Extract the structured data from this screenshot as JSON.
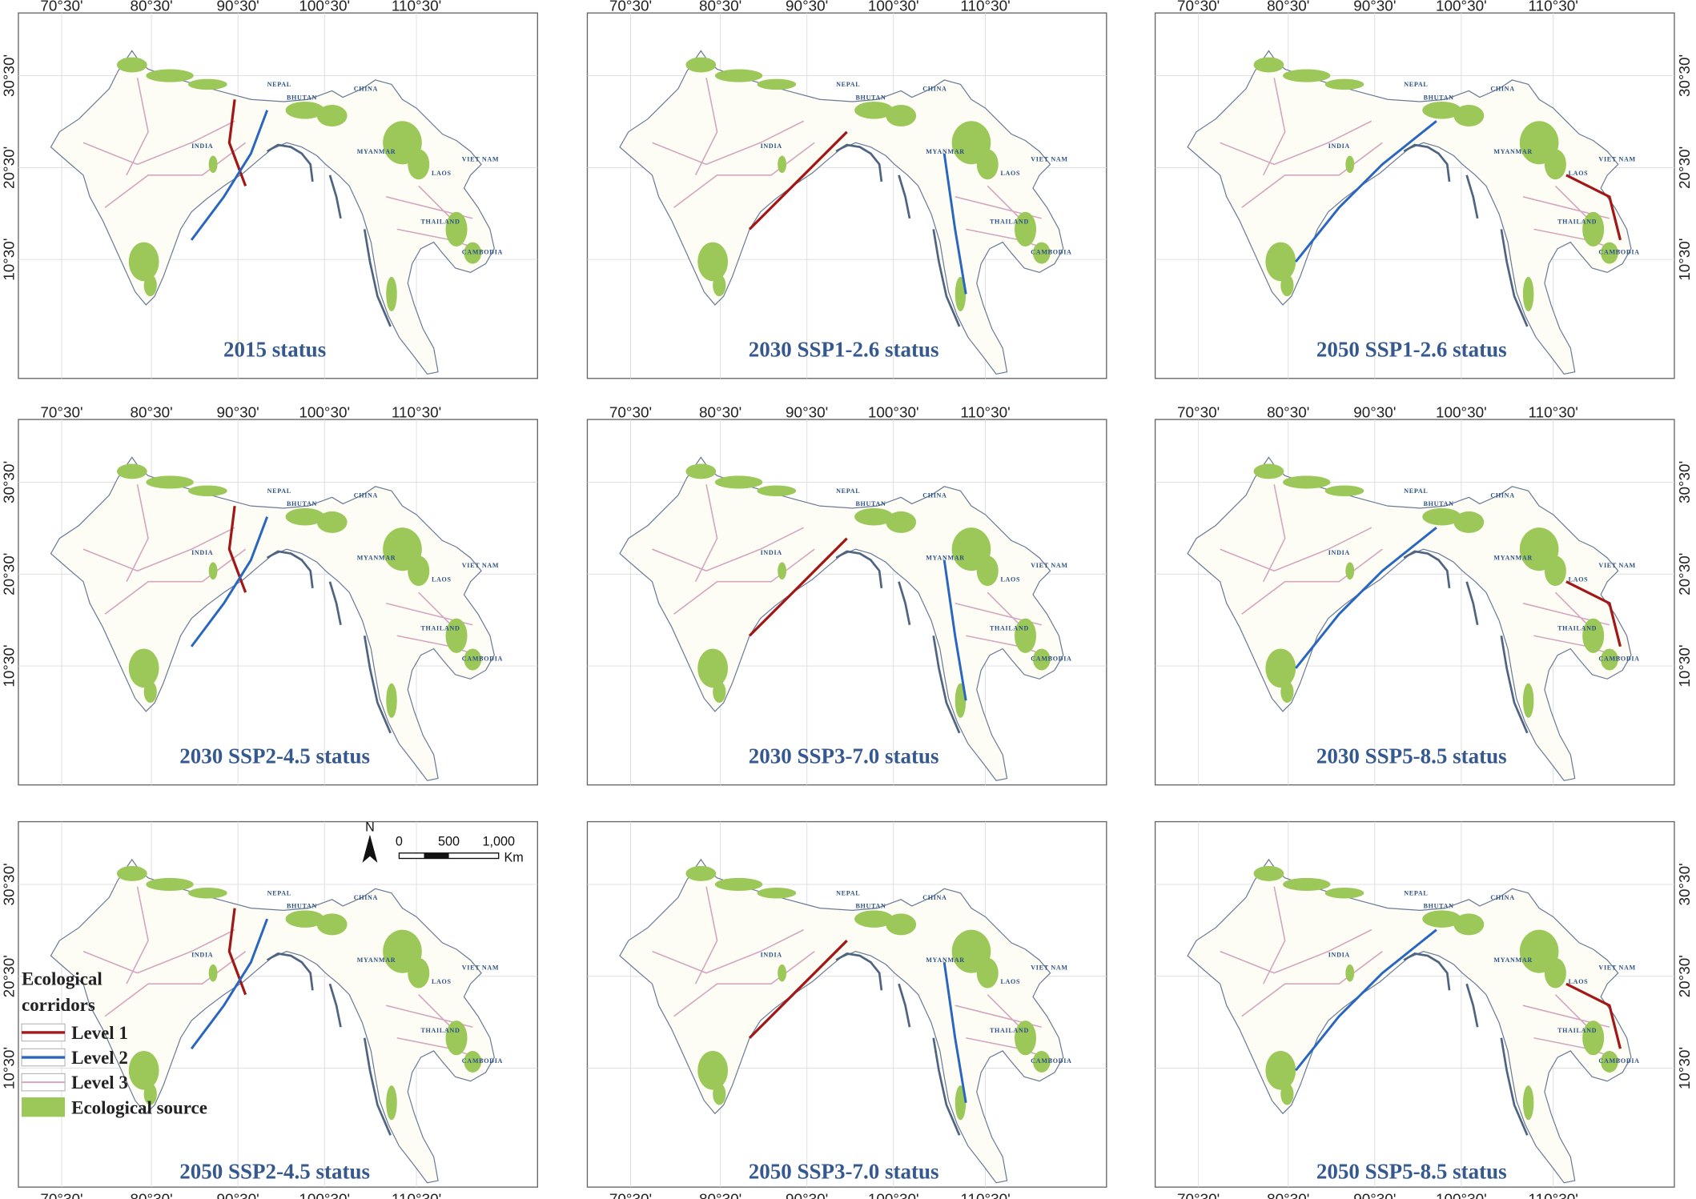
{
  "lon_labels": [
    "70°30'",
    "80°30'",
    "90°30'",
    "100°30'",
    "110°30'"
  ],
  "lat_labels": [
    "30°30'",
    "20°30'",
    "10°30'"
  ],
  "panels": [
    {
      "title": "2015 status"
    },
    {
      "title": "2030 SSP1-2.6 status"
    },
    {
      "title": "2050 SSP1-2.6 status"
    },
    {
      "title": "2030 SSP2-4.5 status"
    },
    {
      "title": "2030 SSP3-7.0 status"
    },
    {
      "title": "2030 SSP5-8.5 status"
    },
    {
      "title": "2050 SSP2-4.5 status"
    },
    {
      "title": "2050 SSP3-7.0 status"
    },
    {
      "title": "2050 SSP5-8.5 status"
    }
  ],
  "country_labels": [
    "NEPAL",
    "BHUTAN",
    "CHINA",
    "INDIA",
    "MYANMAR",
    "VIET NAM",
    "LAOS",
    "THAILAND",
    "CAMBODIA"
  ],
  "legend": {
    "title_lines": [
      "Ecological",
      "corridors"
    ],
    "items": [
      "Level 1",
      "Level 2",
      "Level 3",
      "Ecological source"
    ]
  },
  "scale_bar": {
    "labels": [
      "0",
      "500",
      "1,000"
    ],
    "unit": "Km"
  },
  "north": "N"
}
